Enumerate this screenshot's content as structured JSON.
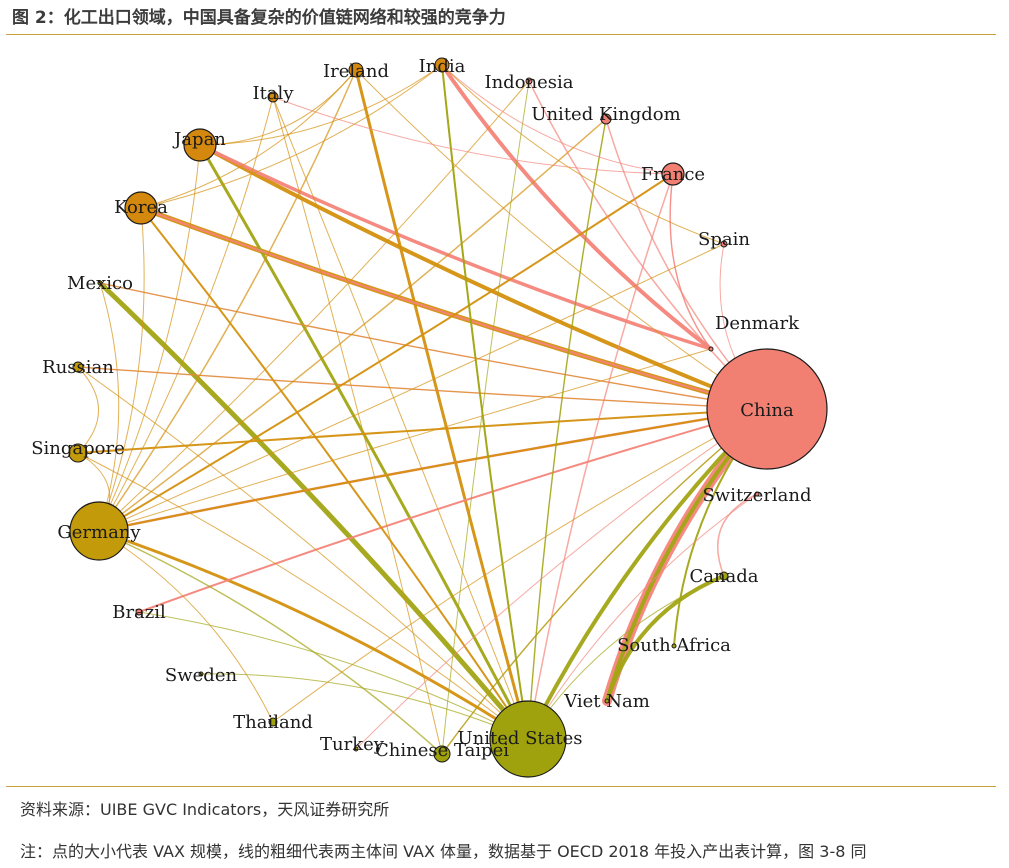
{
  "figure": {
    "title": "图 2：化工出口领域，中国具备复杂的价值链网络和较强的竞争力",
    "source": "资料来源：UIBE GVC Indicators，天风证券研究所",
    "note": "注：点的大小代表 VAX 规模，线的粗细代表两主体间 VAX 体量，数据基于 OECD 2018 年投入产出表计算，图 3-8 同"
  },
  "colors": {
    "accent_rule": "#c8a23c",
    "china": "#f28072",
    "orange_group": "#d4880e",
    "gold_group": "#c39a0a",
    "olive_group": "#9fa20d",
    "edge_pink": "#f4847a",
    "edge_orange": "#d4900e",
    "edge_olive": "#a2a514"
  },
  "nodes": [
    {
      "id": "china",
      "label": "China",
      "group": "pink"
    },
    {
      "id": "denmark",
      "label": "Denmark",
      "group": "pink"
    },
    {
      "id": "spain",
      "label": "Spain",
      "group": "pink"
    },
    {
      "id": "france",
      "label": "France",
      "group": "pink"
    },
    {
      "id": "uk",
      "label": "United Kingdom",
      "group": "pink"
    },
    {
      "id": "indonesia",
      "label": "Indonesia",
      "group": "pink"
    },
    {
      "id": "india",
      "label": "India",
      "group": "orange"
    },
    {
      "id": "ireland",
      "label": "Ireland",
      "group": "orange"
    },
    {
      "id": "italy",
      "label": "Italy",
      "group": "orange"
    },
    {
      "id": "japan",
      "label": "Japan",
      "group": "orange"
    },
    {
      "id": "korea",
      "label": "Korea",
      "group": "orange"
    },
    {
      "id": "mexico",
      "label": "Mexico",
      "group": "olive"
    },
    {
      "id": "russian",
      "label": "Russian",
      "group": "gold"
    },
    {
      "id": "singapore",
      "label": "Singapore",
      "group": "gold"
    },
    {
      "id": "germany",
      "label": "Germany",
      "group": "gold"
    },
    {
      "id": "brazil",
      "label": "Brazil",
      "group": "pink"
    },
    {
      "id": "sweden",
      "label": "Sweden",
      "group": "gold"
    },
    {
      "id": "thailand",
      "label": "Thailand",
      "group": "olive"
    },
    {
      "id": "turkey",
      "label": "Turkey",
      "group": "gold"
    },
    {
      "id": "taipei",
      "label": "Chinese Taipei",
      "group": "olive"
    },
    {
      "id": "us",
      "label": "United States",
      "group": "olive"
    },
    {
      "id": "vietnam",
      "label": "Viet Nam",
      "group": "olive"
    },
    {
      "id": "southafrica",
      "label": "South Africa",
      "group": "olive"
    },
    {
      "id": "canada",
      "label": "Canada",
      "group": "olive"
    },
    {
      "id": "switzerland",
      "label": "Switzerland",
      "group": "pink"
    }
  ]
}
